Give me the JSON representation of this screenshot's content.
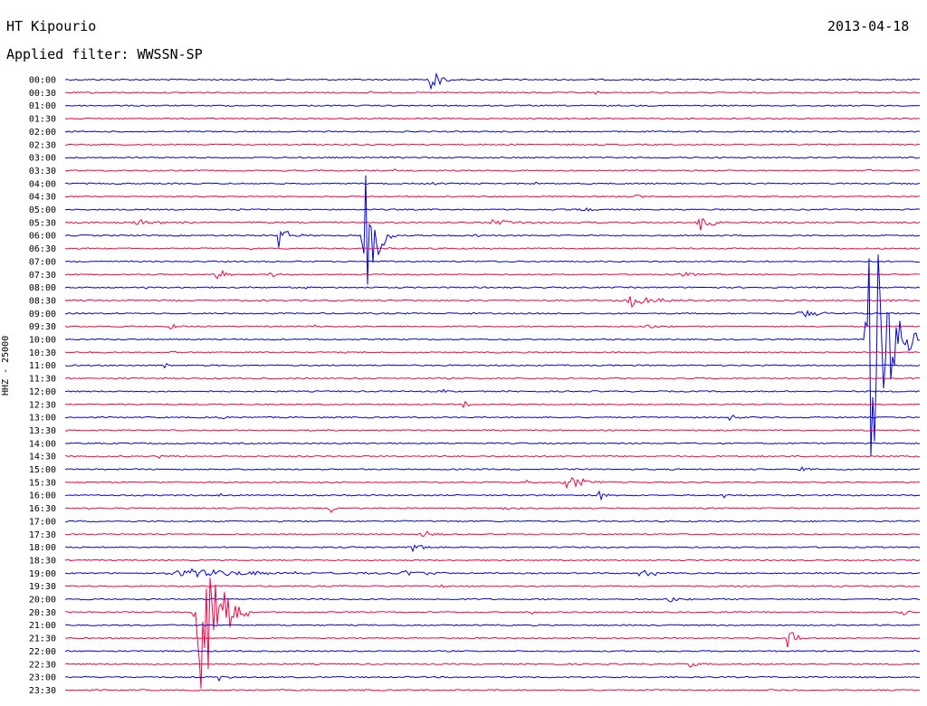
{
  "header": {
    "station": "HT Kipourio",
    "date": "2013-04-18",
    "filter_label": "Applied filter: WWSSN-SP"
  },
  "chart_data": {
    "type": "line",
    "title": "HT Kipourio",
    "channel_label": "HHZ - 25000",
    "colors": {
      "odd_trace": "#0000e6",
      "even_trace": "#ff0040"
    },
    "grid": false,
    "traces": [
      {
        "time": "00:00",
        "color": "blue",
        "events": [
          {
            "x": 0.425,
            "amp": 15,
            "dur": 0.03
          }
        ]
      },
      {
        "time": "00:30",
        "color": "red",
        "events": [
          {
            "x": 0.03,
            "amp": 2,
            "dur": 0.01
          },
          {
            "x": 0.355,
            "amp": 2,
            "dur": 0.01
          },
          {
            "x": 0.62,
            "amp": 2,
            "dur": 0.01
          }
        ]
      },
      {
        "time": "01:00",
        "color": "blue",
        "events": []
      },
      {
        "time": "01:30",
        "color": "red",
        "events": [
          {
            "x": 0.8,
            "amp": 3,
            "dur": 0.008
          }
        ]
      },
      {
        "time": "02:00",
        "color": "blue",
        "events": []
      },
      {
        "time": "02:30",
        "color": "red",
        "events": [
          {
            "x": 0.6,
            "amp": 2,
            "dur": 0.01
          }
        ]
      },
      {
        "time": "03:00",
        "color": "blue",
        "events": []
      },
      {
        "time": "03:30",
        "color": "red",
        "events": [
          {
            "x": 0.38,
            "amp": 2,
            "dur": 0.02
          },
          {
            "x": 0.52,
            "amp": 3,
            "dur": 0.01
          },
          {
            "x": 0.94,
            "amp": 3,
            "dur": 0.02
          }
        ]
      },
      {
        "time": "04:00",
        "color": "blue",
        "events": [
          {
            "x": 0.43,
            "amp": 2,
            "dur": 0.02
          },
          {
            "x": 0.55,
            "amp": 3,
            "dur": 0.01
          }
        ]
      },
      {
        "time": "04:30",
        "color": "red",
        "events": [
          {
            "x": 0.665,
            "amp": 4,
            "dur": 0.015
          }
        ]
      },
      {
        "time": "05:00",
        "color": "blue",
        "events": [
          {
            "x": 0.2,
            "amp": 3,
            "dur": 0.01
          },
          {
            "x": 0.6,
            "amp": 4,
            "dur": 0.03
          }
        ]
      },
      {
        "time": "05:30",
        "color": "red",
        "events": [
          {
            "x": 0.08,
            "amp": 3,
            "dur": 0.12
          },
          {
            "x": 0.5,
            "amp": 3,
            "dur": 0.08
          },
          {
            "x": 0.74,
            "amp": 13,
            "dur": 0.03
          }
        ]
      },
      {
        "time": "06:00",
        "color": "blue",
        "events": [
          {
            "x": 0.25,
            "amp": 16,
            "dur": 0.025
          },
          {
            "x": 0.35,
            "amp": 100,
            "dur": 0.03
          },
          {
            "x": 0.475,
            "amp": 8,
            "dur": 0.015
          }
        ]
      },
      {
        "time": "06:30",
        "color": "red",
        "events": [
          {
            "x": 0.215,
            "amp": 5,
            "dur": 0.01
          },
          {
            "x": 0.38,
            "amp": 3,
            "dur": 0.01
          }
        ]
      },
      {
        "time": "07:00",
        "color": "blue",
        "events": []
      },
      {
        "time": "07:30",
        "color": "red",
        "events": [
          {
            "x": 0.175,
            "amp": 15,
            "dur": 0.02
          },
          {
            "x": 0.24,
            "amp": 8,
            "dur": 0.015
          },
          {
            "x": 0.72,
            "amp": 3,
            "dur": 0.06
          }
        ]
      },
      {
        "time": "08:00",
        "color": "blue",
        "events": [
          {
            "x": 0.09,
            "amp": 3,
            "dur": 0.01
          },
          {
            "x": 0.28,
            "amp": 4,
            "dur": 0.01
          }
        ]
      },
      {
        "time": "08:30",
        "color": "red",
        "events": [
          {
            "x": 0.66,
            "amp": 8,
            "dur": 0.06
          },
          {
            "x": 0.96,
            "amp": 3,
            "dur": 0.02
          }
        ]
      },
      {
        "time": "09:00",
        "color": "blue",
        "events": [
          {
            "x": 0.47,
            "amp": 4,
            "dur": 0.01
          },
          {
            "x": 0.86,
            "amp": 7,
            "dur": 0.04
          }
        ]
      },
      {
        "time": "09:30",
        "color": "red",
        "events": [
          {
            "x": 0.12,
            "amp": 4,
            "dur": 0.03
          },
          {
            "x": 0.29,
            "amp": 3,
            "dur": 0.01
          },
          {
            "x": 0.68,
            "amp": 3,
            "dur": 0.04
          }
        ]
      },
      {
        "time": "10:00",
        "color": "blue",
        "events": [
          {
            "x": 0.94,
            "amp": 180,
            "dur": 0.05
          }
        ]
      },
      {
        "time": "10:30",
        "color": "red",
        "events": [
          {
            "x": 0.12,
            "amp": 2,
            "dur": 0.02
          }
        ]
      },
      {
        "time": "11:00",
        "color": "blue",
        "events": [
          {
            "x": 0.115,
            "amp": 5,
            "dur": 0.015
          }
        ]
      },
      {
        "time": "11:30",
        "color": "red",
        "events": [
          {
            "x": 0.59,
            "amp": 5,
            "dur": 0.005
          }
        ]
      },
      {
        "time": "12:00",
        "color": "blue",
        "events": [
          {
            "x": 0.44,
            "amp": 3,
            "dur": 0.01
          }
        ]
      },
      {
        "time": "12:30",
        "color": "red",
        "events": [
          {
            "x": 0.465,
            "amp": 4,
            "dur": 0.02
          }
        ]
      },
      {
        "time": "13:00",
        "color": "blue",
        "events": [
          {
            "x": 0.18,
            "amp": 4,
            "dur": 0.015
          },
          {
            "x": 0.775,
            "amp": 9,
            "dur": 0.015
          }
        ]
      },
      {
        "time": "13:30",
        "color": "red",
        "events": []
      },
      {
        "time": "14:00",
        "color": "blue",
        "events": []
      },
      {
        "time": "14:30",
        "color": "red",
        "events": [
          {
            "x": 0.11,
            "amp": 3,
            "dur": 0.01
          }
        ]
      },
      {
        "time": "15:00",
        "color": "blue",
        "events": [
          {
            "x": 0.53,
            "amp": 4,
            "dur": 0.01
          },
          {
            "x": 0.86,
            "amp": 4,
            "dur": 0.02
          }
        ]
      },
      {
        "time": "15:30",
        "color": "red",
        "events": [
          {
            "x": 0.54,
            "amp": 4,
            "dur": 0.02
          },
          {
            "x": 0.585,
            "amp": 12,
            "dur": 0.04
          }
        ]
      },
      {
        "time": "16:00",
        "color": "blue",
        "events": [
          {
            "x": 0.18,
            "amp": 3,
            "dur": 0.01
          },
          {
            "x": 0.625,
            "amp": 7,
            "dur": 0.02
          },
          {
            "x": 0.77,
            "amp": 4,
            "dur": 0.015
          }
        ]
      },
      {
        "time": "16:30",
        "color": "red",
        "events": [
          {
            "x": 0.31,
            "amp": 7,
            "dur": 0.01
          },
          {
            "x": 0.51,
            "amp": 3,
            "dur": 0.02
          }
        ]
      },
      {
        "time": "17:00",
        "color": "blue",
        "events": []
      },
      {
        "time": "17:30",
        "color": "red",
        "events": [
          {
            "x": 0.415,
            "amp": 6,
            "dur": 0.03
          }
        ]
      },
      {
        "time": "18:00",
        "color": "blue",
        "events": [
          {
            "x": 0.405,
            "amp": 6,
            "dur": 0.035
          }
        ]
      },
      {
        "time": "18:30",
        "color": "red",
        "events": []
      },
      {
        "time": "19:00",
        "color": "blue",
        "events": [
          {
            "x": 0.13,
            "amp": 5,
            "dur": 0.25
          },
          {
            "x": 0.39,
            "amp": 5,
            "dur": 0.08
          },
          {
            "x": 0.67,
            "amp": 6,
            "dur": 0.05
          }
        ]
      },
      {
        "time": "19:30",
        "color": "red",
        "events": [
          {
            "x": 0.32,
            "amp": 3,
            "dur": 0.01
          },
          {
            "x": 0.44,
            "amp": 3,
            "dur": 0.01
          }
        ]
      },
      {
        "time": "20:00",
        "color": "blue",
        "events": [
          {
            "x": 0.705,
            "amp": 5,
            "dur": 0.03
          }
        ]
      },
      {
        "time": "20:30",
        "color": "red",
        "events": [
          {
            "x": 0.155,
            "amp": 130,
            "dur": 0.05
          },
          {
            "x": 0.545,
            "amp": 5,
            "dur": 0.01
          },
          {
            "x": 0.975,
            "amp": 7,
            "dur": 0.02
          }
        ]
      },
      {
        "time": "21:00",
        "color": "blue",
        "events": []
      },
      {
        "time": "21:30",
        "color": "red",
        "events": [
          {
            "x": 0.845,
            "amp": 13,
            "dur": 0.025
          }
        ]
      },
      {
        "time": "22:00",
        "color": "blue",
        "events": []
      },
      {
        "time": "22:30",
        "color": "red",
        "events": [
          {
            "x": 0.73,
            "amp": 4,
            "dur": 0.02
          }
        ]
      },
      {
        "time": "23:00",
        "color": "blue",
        "events": [
          {
            "x": 0.18,
            "amp": 4,
            "dur": 0.02
          }
        ]
      },
      {
        "time": "23:30",
        "color": "red",
        "events": [
          {
            "x": 0.8,
            "amp": 2,
            "dur": 0.01
          }
        ]
      }
    ]
  }
}
